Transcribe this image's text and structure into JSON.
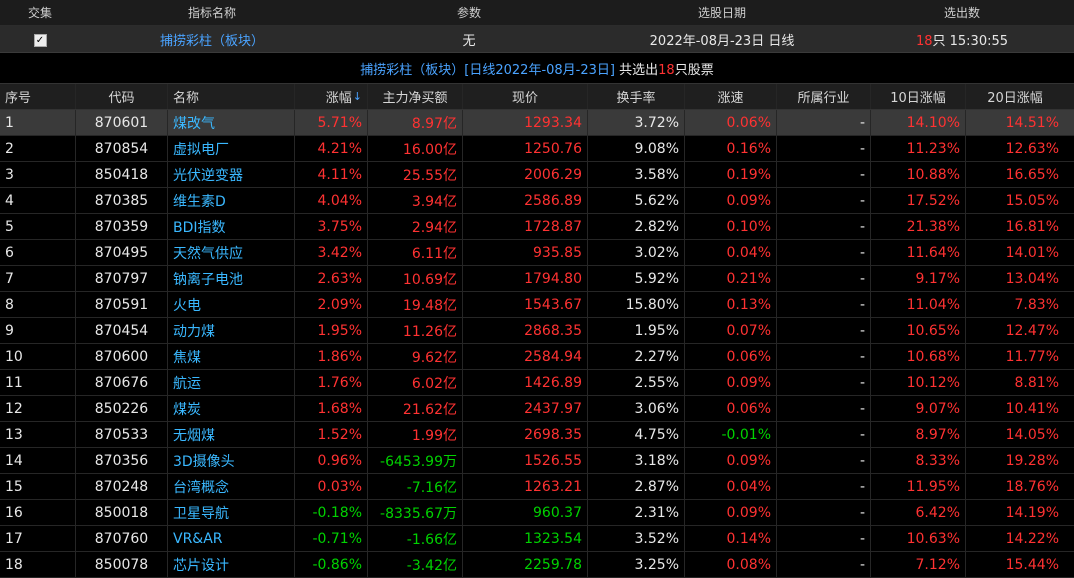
{
  "top": {
    "headers": [
      "交集",
      "指标名称",
      "参数",
      "选股日期",
      "选出数"
    ],
    "row": {
      "checked": true,
      "indicator": "捕捞彩柱（板块）",
      "param": "无",
      "date": "2022年-08月-23日 日线",
      "count": "18",
      "count_suffix": "只 15:30:55"
    }
  },
  "result_title": {
    "prefix": "捕捞彩柱（板块）[日线2022年-08月-23日]",
    "middle": " 共选出",
    "count": "18",
    "suffix": "只股票"
  },
  "columns": {
    "seq": "序号",
    "code": "代码",
    "name": "名称",
    "chg": "涨幅",
    "flow": "主力净买额",
    "price": "现价",
    "turnover": "换手率",
    "speed": "涨速",
    "industry": "所属行业",
    "d10": "10日涨幅",
    "d20": "20日涨幅"
  },
  "sort_icon": "sort-down-arrow-icon",
  "colors": {
    "up": "#ff3232",
    "down": "#00d200",
    "name": "#3ab8ff",
    "accent": "#4aa3ff"
  },
  "rows": [
    {
      "seq": "1",
      "code": "870601",
      "name": "煤改气",
      "chg": "5.71%",
      "flow": "8.97亿",
      "price": "1293.34",
      "turnover": "3.72%",
      "speed": "0.06%",
      "industry": "-",
      "d10": "14.10%",
      "d20": "14.51%",
      "selected": true
    },
    {
      "seq": "2",
      "code": "870854",
      "name": "虚拟电厂",
      "chg": "4.21%",
      "flow": "16.00亿",
      "price": "1250.76",
      "turnover": "9.08%",
      "speed": "0.16%",
      "industry": "-",
      "d10": "11.23%",
      "d20": "12.63%"
    },
    {
      "seq": "3",
      "code": "850418",
      "name": "光伏逆变器",
      "chg": "4.11%",
      "flow": "25.55亿",
      "price": "2006.29",
      "turnover": "3.58%",
      "speed": "0.19%",
      "industry": "-",
      "d10": "10.88%",
      "d20": "16.65%"
    },
    {
      "seq": "4",
      "code": "870385",
      "name": "维生素D",
      "chg": "4.04%",
      "flow": "3.94亿",
      "price": "2586.89",
      "turnover": "5.62%",
      "speed": "0.09%",
      "industry": "-",
      "d10": "17.52%",
      "d20": "15.05%"
    },
    {
      "seq": "5",
      "code": "870359",
      "name": "BDI指数",
      "chg": "3.75%",
      "flow": "2.94亿",
      "price": "1728.87",
      "turnover": "2.82%",
      "speed": "0.10%",
      "industry": "-",
      "d10": "21.38%",
      "d20": "16.81%"
    },
    {
      "seq": "6",
      "code": "870495",
      "name": "天然气供应",
      "chg": "3.42%",
      "flow": "6.11亿",
      "price": "935.85",
      "turnover": "3.02%",
      "speed": "0.04%",
      "industry": "-",
      "d10": "11.64%",
      "d20": "14.01%"
    },
    {
      "seq": "7",
      "code": "870797",
      "name": "钠离子电池",
      "chg": "2.63%",
      "flow": "10.69亿",
      "price": "1794.80",
      "turnover": "5.92%",
      "speed": "0.21%",
      "industry": "-",
      "d10": "9.17%",
      "d20": "13.04%"
    },
    {
      "seq": "8",
      "code": "870591",
      "name": "火电",
      "chg": "2.09%",
      "flow": "19.48亿",
      "price": "1543.67",
      "turnover": "15.80%",
      "speed": "0.13%",
      "industry": "-",
      "d10": "11.04%",
      "d20": "7.83%"
    },
    {
      "seq": "9",
      "code": "870454",
      "name": "动力煤",
      "chg": "1.95%",
      "flow": "11.26亿",
      "price": "2868.35",
      "turnover": "1.95%",
      "speed": "0.07%",
      "industry": "-",
      "d10": "10.65%",
      "d20": "12.47%"
    },
    {
      "seq": "10",
      "code": "870600",
      "name": "焦煤",
      "chg": "1.86%",
      "flow": "9.62亿",
      "price": "2584.94",
      "turnover": "2.27%",
      "speed": "0.06%",
      "industry": "-",
      "d10": "10.68%",
      "d20": "11.77%"
    },
    {
      "seq": "11",
      "code": "870676",
      "name": "航运",
      "chg": "1.76%",
      "flow": "6.02亿",
      "price": "1426.89",
      "turnover": "2.55%",
      "speed": "0.09%",
      "industry": "-",
      "d10": "10.12%",
      "d20": "8.81%"
    },
    {
      "seq": "12",
      "code": "850226",
      "name": "煤炭",
      "chg": "1.68%",
      "flow": "21.62亿",
      "price": "2437.97",
      "turnover": "3.06%",
      "speed": "0.06%",
      "industry": "-",
      "d10": "9.07%",
      "d20": "10.41%"
    },
    {
      "seq": "13",
      "code": "870533",
      "name": "无烟煤",
      "chg": "1.52%",
      "flow": "1.99亿",
      "price": "2698.35",
      "turnover": "4.75%",
      "speed": "-0.01%",
      "industry": "-",
      "d10": "8.97%",
      "d20": "14.05%"
    },
    {
      "seq": "14",
      "code": "870356",
      "name": "3D摄像头",
      "chg": "0.96%",
      "flow": "-6453.99万",
      "price": "1526.55",
      "turnover": "3.18%",
      "speed": "0.09%",
      "industry": "-",
      "d10": "8.33%",
      "d20": "19.28%"
    },
    {
      "seq": "15",
      "code": "870248",
      "name": "台湾概念",
      "chg": "0.03%",
      "flow": "-7.16亿",
      "price": "1263.21",
      "turnover": "2.87%",
      "speed": "0.04%",
      "industry": "-",
      "d10": "11.95%",
      "d20": "18.76%"
    },
    {
      "seq": "16",
      "code": "850018",
      "name": "卫星导航",
      "chg": "-0.18%",
      "flow": "-8335.67万",
      "price": "960.37",
      "turnover": "2.31%",
      "speed": "0.09%",
      "industry": "-",
      "d10": "6.42%",
      "d20": "14.19%"
    },
    {
      "seq": "17",
      "code": "870760",
      "name": "VR&AR",
      "chg": "-0.71%",
      "flow": "-1.66亿",
      "price": "1323.54",
      "turnover": "3.52%",
      "speed": "0.14%",
      "industry": "-",
      "d10": "10.63%",
      "d20": "14.22%"
    },
    {
      "seq": "18",
      "code": "850078",
      "name": "芯片设计",
      "chg": "-0.86%",
      "flow": "-3.42亿",
      "price": "2259.78",
      "turnover": "3.25%",
      "speed": "0.08%",
      "industry": "-",
      "d10": "7.12%",
      "d20": "15.44%"
    }
  ]
}
